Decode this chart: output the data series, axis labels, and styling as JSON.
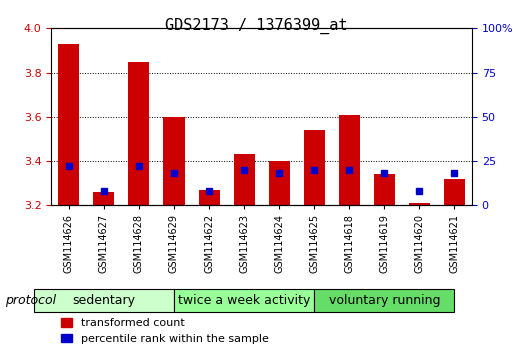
{
  "title": "GDS2173 / 1376399_at",
  "samples": [
    "GSM114626",
    "GSM114627",
    "GSM114628",
    "GSM114629",
    "GSM114622",
    "GSM114623",
    "GSM114624",
    "GSM114625",
    "GSM114618",
    "GSM114619",
    "GSM114620",
    "GSM114621"
  ],
  "transformed_count": [
    3.93,
    3.26,
    3.85,
    3.6,
    3.27,
    3.43,
    3.4,
    3.54,
    3.61,
    3.34,
    3.21,
    3.32
  ],
  "percentile_rank": [
    22,
    8,
    22,
    18,
    8,
    20,
    18,
    20,
    20,
    18,
    8,
    18
  ],
  "groups": [
    {
      "label": "sedentary",
      "indices": [
        0,
        1,
        2,
        3
      ],
      "color": "#ccffcc"
    },
    {
      "label": "twice a week activity",
      "indices": [
        4,
        5,
        6,
        7
      ],
      "color": "#99ff99"
    },
    {
      "label": "voluntary running",
      "indices": [
        8,
        9,
        10,
        11
      ],
      "color": "#66dd66"
    }
  ],
  "y_min": 3.2,
  "y_max": 4.0,
  "y_ticks": [
    3.2,
    3.4,
    3.6,
    3.8,
    4.0
  ],
  "y2_ticks": [
    0,
    25,
    50,
    75,
    100
  ],
  "bar_color_red": "#cc0000",
  "bar_color_blue": "#0000cc",
  "bar_width": 0.6,
  "protocol_label": "protocol",
  "legend_red": "transformed count",
  "legend_blue": "percentile rank within the sample",
  "title_fontsize": 11,
  "axis_fontsize": 9,
  "tick_fontsize": 8,
  "group_label_fontsize": 9
}
